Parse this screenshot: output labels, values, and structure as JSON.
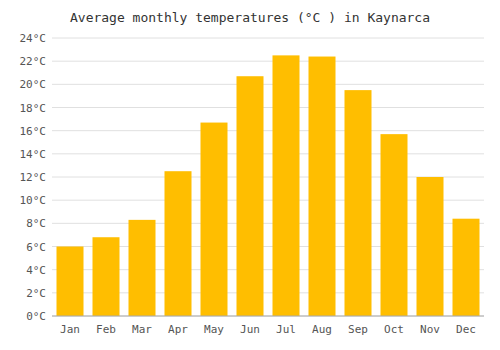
{
  "chart_data": {
    "type": "bar",
    "title": "Average monthly temperatures (°C ) in Kaynarca",
    "categories": [
      "Jan",
      "Feb",
      "Mar",
      "Apr",
      "May",
      "Jun",
      "Jul",
      "Aug",
      "Sep",
      "Oct",
      "Nov",
      "Dec"
    ],
    "values": [
      6.0,
      6.8,
      8.3,
      12.5,
      16.7,
      20.7,
      22.5,
      22.4,
      19.5,
      15.7,
      12.0,
      8.4
    ],
    "color": "#FFBE00",
    "ylim": [
      0,
      24
    ],
    "yticks": [
      {
        "value": 0,
        "label": "0°C"
      },
      {
        "value": 2,
        "label": "2°C"
      },
      {
        "value": 4,
        "label": "4°C"
      },
      {
        "value": 6,
        "label": "6°C"
      },
      {
        "value": 8,
        "label": "8°C"
      },
      {
        "value": 10,
        "label": "10°C"
      },
      {
        "value": 12,
        "label": "12°C"
      },
      {
        "value": 14,
        "label": "14°C"
      },
      {
        "value": 16,
        "label": "16°C"
      },
      {
        "value": 18,
        "label": "18°C"
      },
      {
        "value": 20,
        "label": "20°C"
      },
      {
        "value": 22,
        "label": "22°C"
      },
      {
        "value": 24,
        "label": "24°C"
      }
    ],
    "grid": true
  }
}
